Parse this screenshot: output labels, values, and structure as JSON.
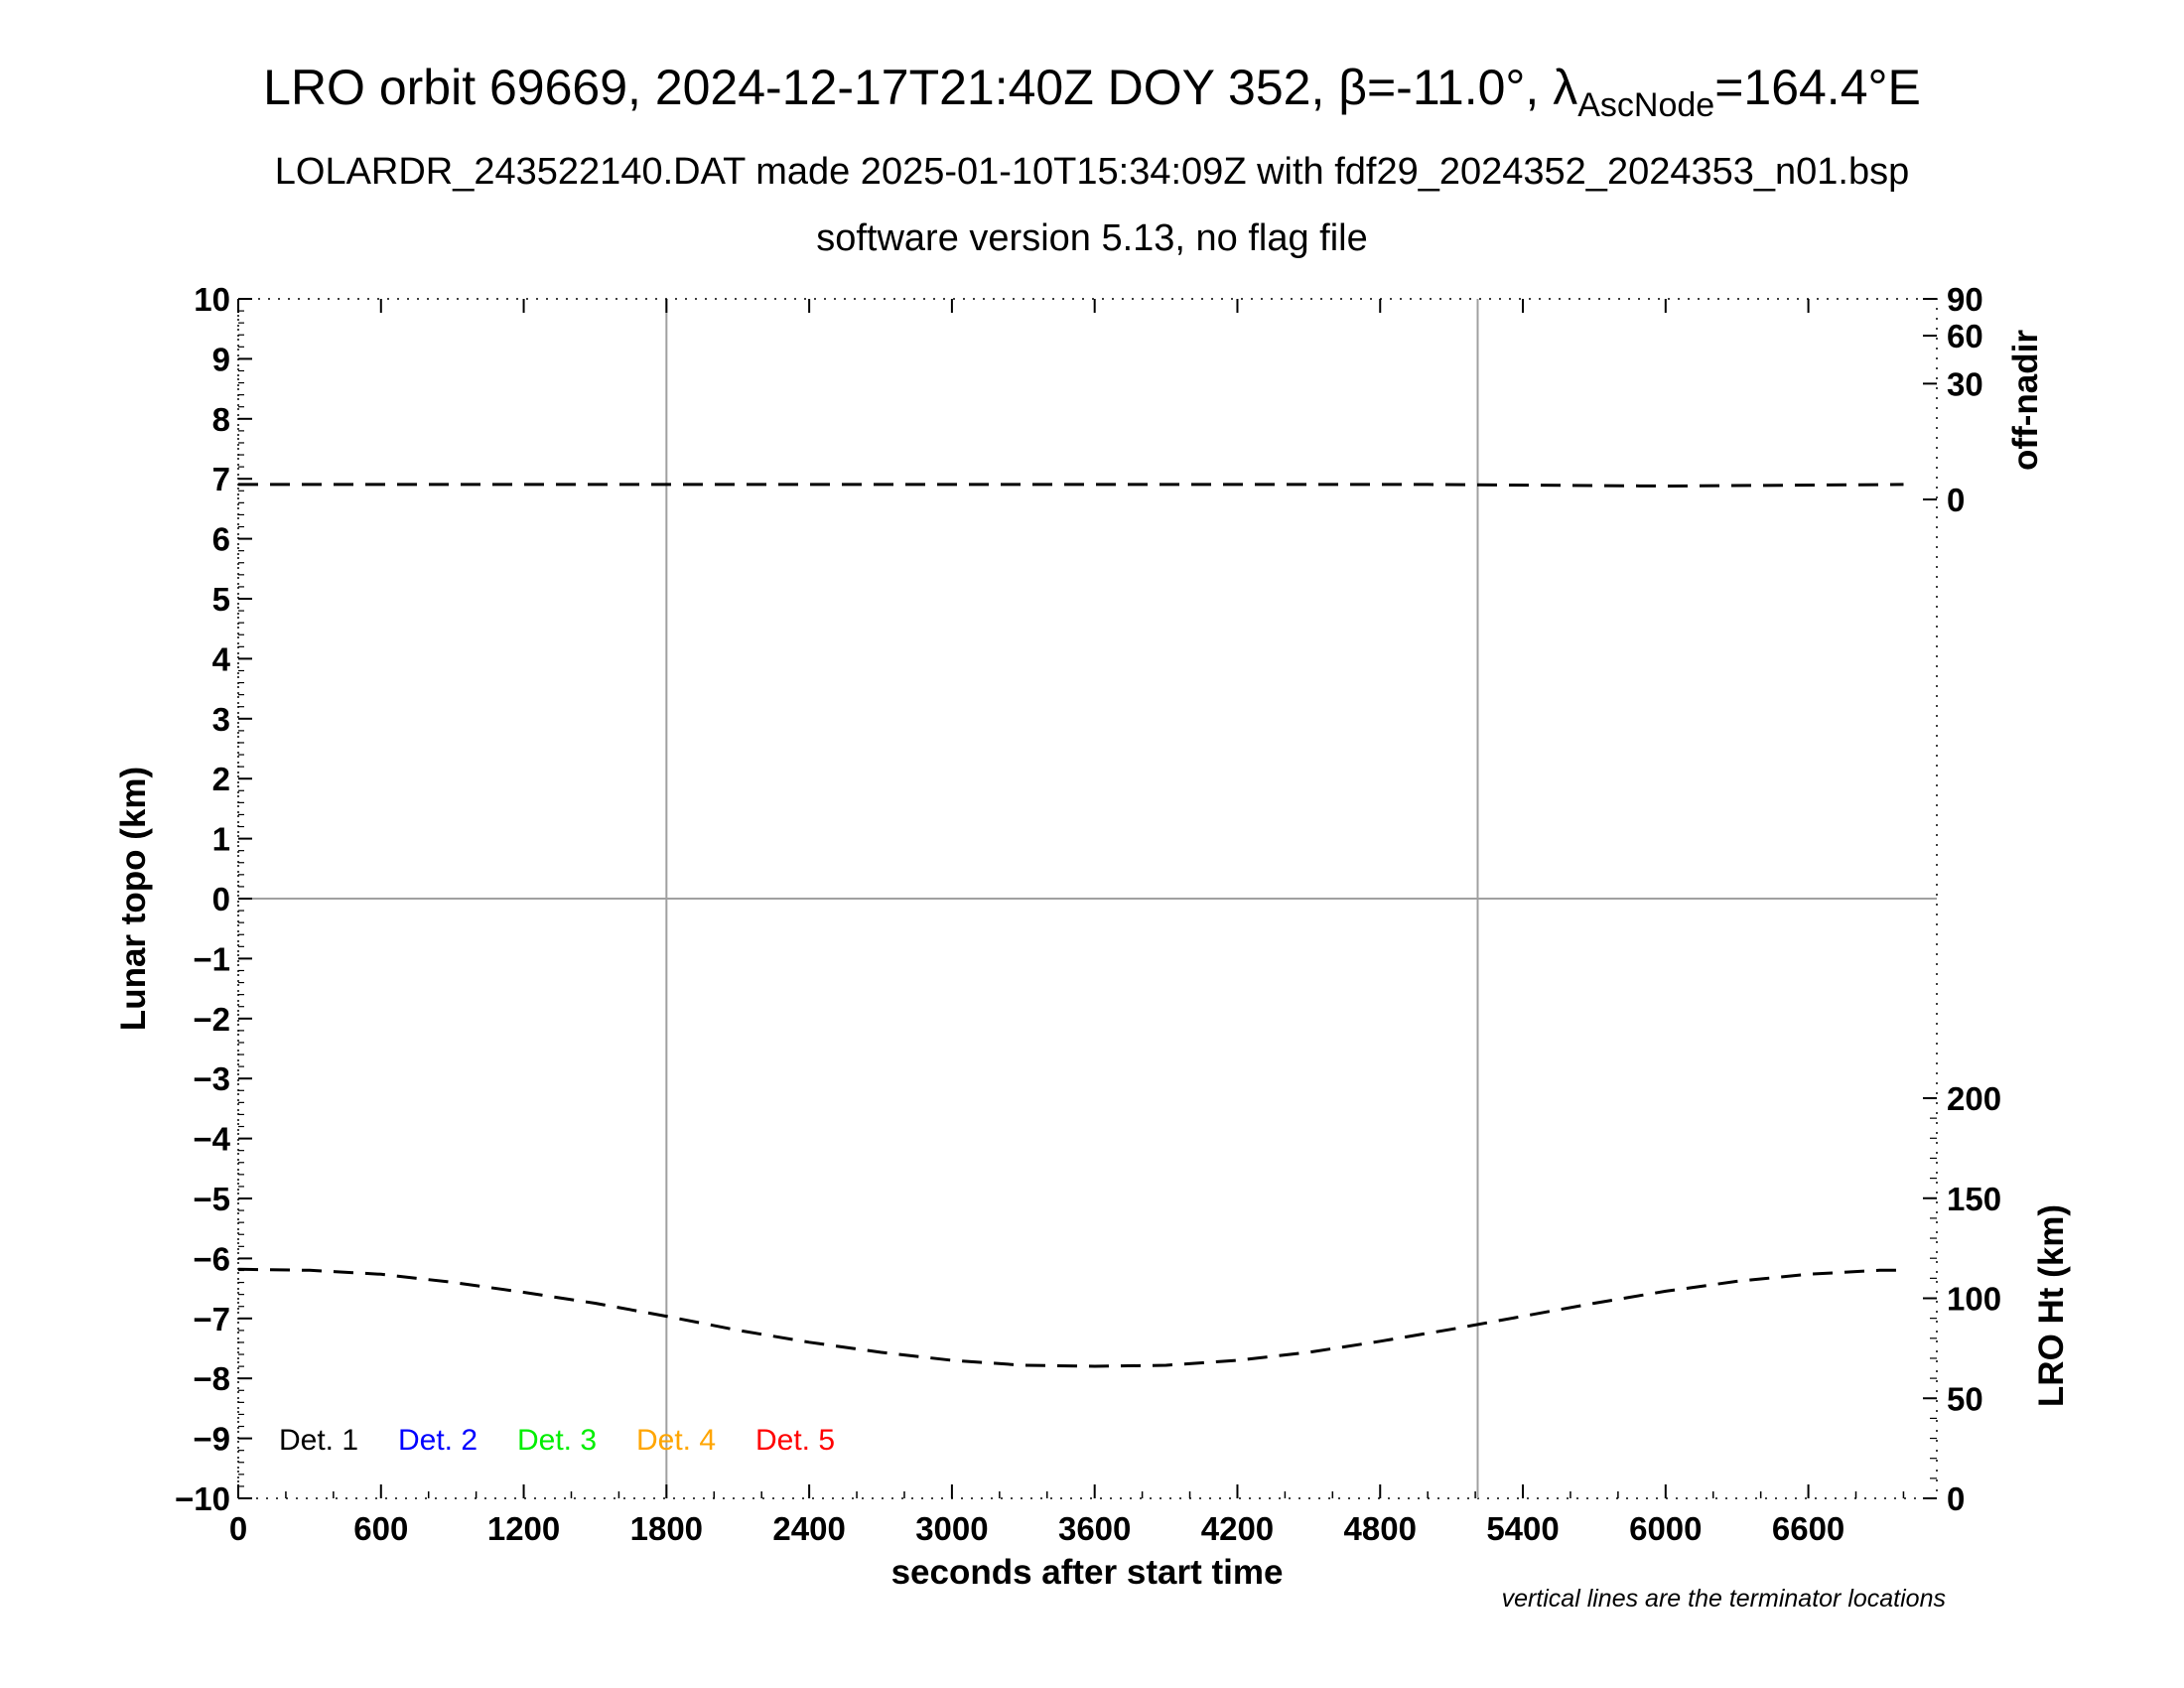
{
  "header": {
    "title_main": "LRO orbit 69669, 2024-12-17T21:40Z DOY 352, β=-11.0°, λ",
    "title_sub": "AscNode",
    "title_end": "=164.4°E",
    "subtitle": "LOLARDR_243522140.DAT made 2025-01-10T15:34:09Z with fdf29_2024352_2024353_n01.bsp",
    "subtitle2": "software version 5.13, no flag file"
  },
  "chart_data": {
    "type": "line",
    "xlabel": "seconds after start time",
    "ylabel": "Lunar topo (km)",
    "y2_top_label": "off-nadir",
    "y2_bottom_label": "LRO Ht (km)",
    "note": "vertical lines are the terminator locations",
    "xlim": [
      0,
      7140
    ],
    "ylim": [
      -10,
      10
    ],
    "x_ticks": [
      0,
      600,
      1200,
      1800,
      2400,
      3000,
      3600,
      4200,
      4800,
      5400,
      6000,
      6600
    ],
    "x_tick_labels": [
      "0",
      "600",
      "1200",
      "1800",
      "2400",
      "3000",
      "3600",
      "4200",
      "4800",
      "5400",
      "6000",
      "6600"
    ],
    "y_ticks": [
      10,
      9,
      8,
      7,
      6,
      5,
      4,
      3,
      2,
      1,
      0,
      -1,
      -2,
      -3,
      -4,
      -5,
      -6,
      -7,
      -8,
      -9,
      -10
    ],
    "y_tick_labels": [
      "10",
      "9",
      "8",
      "7",
      "6",
      "5",
      "4",
      "3",
      "2",
      "1",
      "0",
      "−1",
      "−2",
      "−3",
      "−4",
      "−5",
      "−6",
      "−7",
      "−8",
      "−9",
      "−10"
    ],
    "off_nadir_axis": {
      "range": [
        0,
        90
      ],
      "ticks": [
        90,
        60,
        30,
        0
      ],
      "tick_labels": [
        "90",
        "60",
        "30",
        "0"
      ]
    },
    "height_axis": {
      "range": [
        0,
        200
      ],
      "ticks": [
        200,
        150,
        100,
        50,
        0
      ],
      "tick_labels": [
        "200",
        "150",
        "100",
        "50",
        "0"
      ]
    },
    "terminator_x": [
      1800,
      5210
    ],
    "grid": "horizontal line at 0 and vertical terminator lines",
    "legend_placement": "bottom-left",
    "legend": [
      {
        "label": "Det. 1",
        "color": "#000000"
      },
      {
        "label": "Det. 2",
        "color": "#0000ff"
      },
      {
        "label": "Det. 3",
        "color": "#00ee00"
      },
      {
        "label": "Det. 4",
        "color": "#ffa500"
      },
      {
        "label": "Det. 5",
        "color": "#ff0000"
      }
    ],
    "series": [
      {
        "axis": "off-nadir",
        "style": "dashed",
        "color": "#000000",
        "x": [
          0,
          1000,
          2000,
          3000,
          4000,
          5000,
          6000,
          7000
        ],
        "values": [
          0.5,
          0.5,
          0.5,
          0.5,
          0.5,
          0.5,
          0.4,
          0.5
        ]
      },
      {
        "axis": "LRO Ht (km)",
        "style": "dashed",
        "color": "#000000",
        "x": [
          0,
          300,
          600,
          900,
          1200,
          1500,
          1800,
          2100,
          2400,
          2700,
          3000,
          3300,
          3600,
          3900,
          4200,
          4500,
          4800,
          5100,
          5400,
          5700,
          6000,
          6300,
          6600,
          6900,
          7000
        ],
        "values": [
          114.5,
          114,
          112,
          108,
          103,
          97.5,
          91,
          84,
          78,
          73,
          69,
          66.5,
          66,
          66.5,
          69,
          73,
          78.5,
          84.5,
          91,
          97.5,
          103.5,
          108.5,
          112,
          114,
          114
        ]
      }
    ]
  }
}
